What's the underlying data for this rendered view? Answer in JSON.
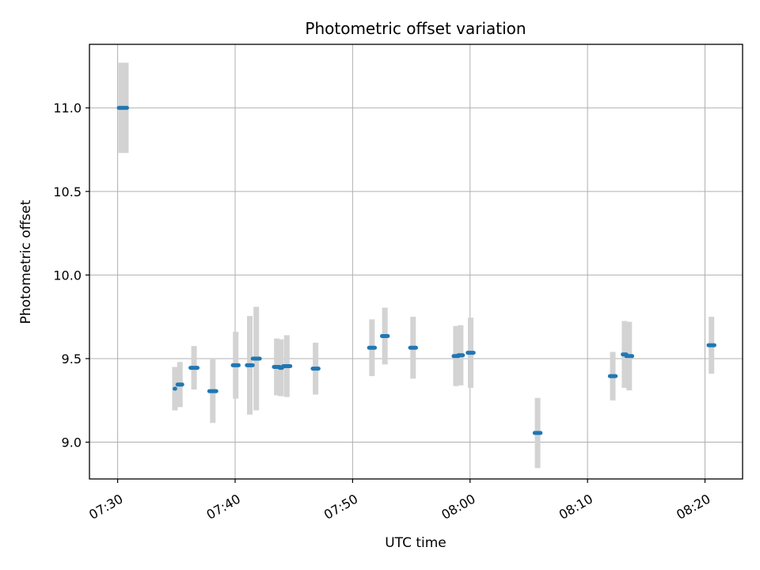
{
  "chart_data": {
    "type": "scatter",
    "title": "Photometric offset variation",
    "xlabel": "UTC time",
    "ylabel": "Photometric offset",
    "grid": true,
    "x_unit": "minutes since 07:00 UTC",
    "xlim": [
      27.6,
      83.2
    ],
    "ylim": [
      8.78,
      11.38
    ],
    "x_ticks": [
      {
        "value": 30,
        "label": "07:30"
      },
      {
        "value": 40,
        "label": "07:40"
      },
      {
        "value": 50,
        "label": "07:50"
      },
      {
        "value": 60,
        "label": "08:00"
      },
      {
        "value": 70,
        "label": "08:10"
      },
      {
        "value": 80,
        "label": "08:20"
      }
    ],
    "y_ticks": [
      {
        "value": 9.0,
        "label": "9.0"
      },
      {
        "value": 9.5,
        "label": "9.5"
      },
      {
        "value": 10.0,
        "label": "10.0"
      },
      {
        "value": 10.5,
        "label": "10.5"
      },
      {
        "value": 11.0,
        "label": "11.0"
      }
    ],
    "colors": {
      "point": "#1f77b4",
      "errorbar": "#d3d3d3",
      "grid": "#b0b0b0"
    },
    "points": [
      {
        "x": 30.1,
        "x2": 30.5,
        "y": 11.0,
        "err": 0.27
      },
      {
        "x": 30.6,
        "x2": 30.8,
        "y": 11.0,
        "err": 0.27
      },
      {
        "x": 34.85,
        "x2": 34.9,
        "y": 9.32,
        "err": 0.13
      },
      {
        "x": 35.1,
        "x2": 35.5,
        "y": 9.345,
        "err": 0.135
      },
      {
        "x": 36.2,
        "x2": 36.8,
        "y": 9.445,
        "err": 0.13
      },
      {
        "x": 37.8,
        "x2": 38.4,
        "y": 9.305,
        "err": 0.19
      },
      {
        "x": 39.8,
        "x2": 40.3,
        "y": 9.46,
        "err": 0.2
      },
      {
        "x": 41.0,
        "x2": 41.5,
        "y": 9.46,
        "err": 0.295
      },
      {
        "x": 41.5,
        "x2": 42.1,
        "y": 9.5,
        "err": 0.31
      },
      {
        "x": 43.3,
        "x2": 43.8,
        "y": 9.45,
        "err": 0.17
      },
      {
        "x": 43.8,
        "x2": 44.0,
        "y": 9.445,
        "err": 0.17
      },
      {
        "x": 44.1,
        "x2": 44.7,
        "y": 9.455,
        "err": 0.185
      },
      {
        "x": 46.6,
        "x2": 47.1,
        "y": 9.44,
        "err": 0.155
      },
      {
        "x": 51.4,
        "x2": 51.9,
        "y": 9.565,
        "err": 0.17
      },
      {
        "x": 52.5,
        "x2": 53.0,
        "y": 9.635,
        "err": 0.17
      },
      {
        "x": 54.9,
        "x2": 55.4,
        "y": 9.565,
        "err": 0.185
      },
      {
        "x": 58.6,
        "x2": 59.0,
        "y": 9.515,
        "err": 0.18
      },
      {
        "x": 59.0,
        "x2": 59.4,
        "y": 9.52,
        "err": 0.18
      },
      {
        "x": 59.8,
        "x2": 60.3,
        "y": 9.535,
        "err": 0.21
      },
      {
        "x": 65.5,
        "x2": 66.0,
        "y": 9.055,
        "err": 0.21
      },
      {
        "x": 71.9,
        "x2": 72.4,
        "y": 9.395,
        "err": 0.145
      },
      {
        "x": 73.0,
        "x2": 73.3,
        "y": 9.525,
        "err": 0.2
      },
      {
        "x": 73.3,
        "x2": 73.8,
        "y": 9.515,
        "err": 0.205
      },
      {
        "x": 80.3,
        "x2": 80.8,
        "y": 9.58,
        "err": 0.17
      }
    ]
  }
}
